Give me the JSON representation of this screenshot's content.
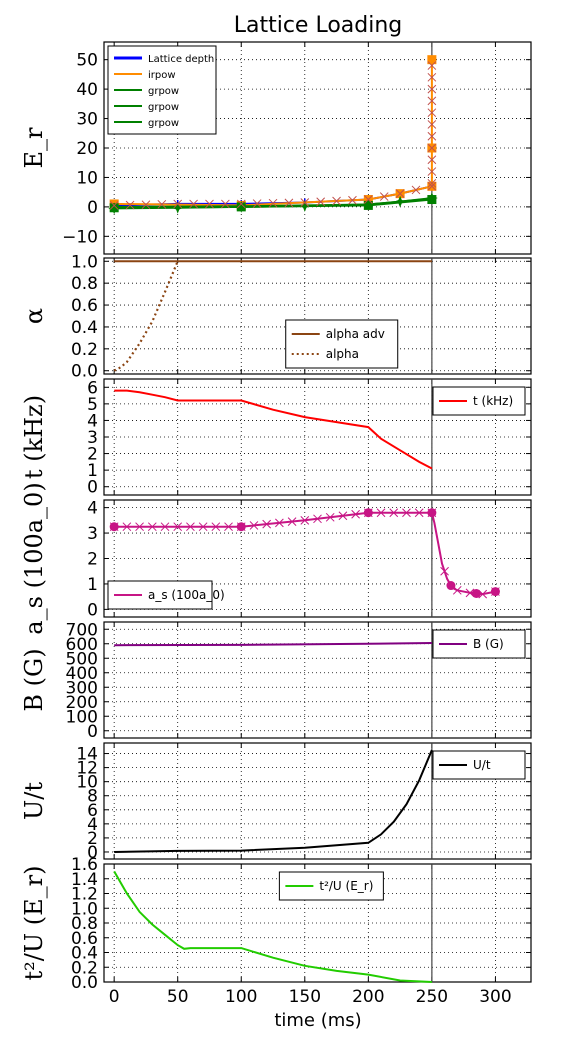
{
  "figure": {
    "title": "Lattice Loading",
    "xlabel": "time (ms)"
  },
  "chart_data": [
    {
      "type": "line",
      "ylabel": "E_r",
      "ylim": [
        -16,
        56
      ],
      "yticks": [
        -10,
        0,
        10,
        20,
        30,
        40,
        50
      ],
      "ytick_labels": [
        "−10",
        "0",
        "10",
        "20",
        "30",
        "40",
        "50"
      ],
      "legend_position": "upper-left",
      "series": [
        {
          "name": "Lattice depth",
          "color": "#0000ff",
          "style": "solid",
          "marker": "plus",
          "x": [
            0,
            50,
            100,
            150,
            200,
            225,
            250
          ],
          "y": [
            0.5,
            1.0,
            1.0,
            1.5,
            2.5,
            4.5,
            7.0
          ]
        },
        {
          "name": "irpow",
          "color": "#ff8c00",
          "style": "solid",
          "marker": "square",
          "x": [
            0,
            100,
            200,
            225,
            250,
            250,
            250
          ],
          "y": [
            1,
            0.5,
            2.5,
            4.5,
            7.0,
            20,
            50
          ]
        },
        {
          "name": "grpow",
          "color": "#007f00",
          "style": "solid",
          "marker": "star",
          "x": [
            0,
            50,
            100,
            150,
            200,
            225,
            250
          ],
          "y": [
            -0.5,
            -0.3,
            0,
            0.3,
            0.8,
            1.8,
            3.0
          ]
        },
        {
          "name": "grpow",
          "color": "#008000",
          "style": "solid",
          "marker": "square",
          "x": [
            0,
            100,
            200,
            250
          ],
          "y": [
            -0.3,
            0,
            0.5,
            2.5
          ]
        },
        {
          "name": "grpow",
          "color": "#008000",
          "style": "solid",
          "marker": "none",
          "x": [
            0,
            100,
            200,
            250
          ],
          "y": [
            0,
            0.2,
            0.8,
            2.8
          ]
        }
      ]
    },
    {
      "type": "line",
      "ylabel": "α",
      "ylim": [
        -0.03,
        1.03
      ],
      "yticks": [
        0.0,
        0.2,
        0.4,
        0.6,
        0.8,
        1.0
      ],
      "ytick_labels": [
        "0.0",
        "0.2",
        "0.4",
        "0.6",
        "0.8",
        "1.0"
      ],
      "legend_position": "lower-center",
      "series": [
        {
          "name": "alpha adv",
          "color": "#8b4513",
          "style": "solid",
          "x": [
            0,
            250
          ],
          "y": [
            1.0,
            1.0
          ]
        },
        {
          "name": "alpha",
          "color": "#8b4513",
          "style": "dotted",
          "x": [
            0,
            5,
            10,
            20,
            30,
            40,
            50
          ],
          "y": [
            0.0,
            0.03,
            0.08,
            0.25,
            0.45,
            0.72,
            1.0
          ]
        }
      ]
    },
    {
      "type": "line",
      "ylabel": "t (kHz)",
      "ylim": [
        -0.5,
        6.5
      ],
      "yticks": [
        0,
        1,
        2,
        3,
        4,
        5,
        6
      ],
      "ytick_labels": [
        "0",
        "1",
        "2",
        "3",
        "4",
        "5",
        "6"
      ],
      "legend_position": "upper-right",
      "series": [
        {
          "name": "t (kHz)",
          "color": "#ff0000",
          "style": "solid",
          "x": [
            0,
            10,
            20,
            30,
            40,
            50,
            60,
            70,
            80,
            90,
            100,
            125,
            150,
            175,
            200,
            210,
            225,
            240,
            250
          ],
          "y": [
            5.8,
            5.8,
            5.7,
            5.55,
            5.4,
            5.2,
            5.2,
            5.2,
            5.2,
            5.2,
            5.2,
            4.65,
            4.2,
            3.9,
            3.6,
            2.9,
            2.2,
            1.5,
            1.1
          ]
        }
      ]
    },
    {
      "type": "line",
      "ylabel": "a_s (100a_0)",
      "ylim": [
        -0.3,
        4.3
      ],
      "yticks": [
        0,
        1,
        2,
        3,
        4
      ],
      "ytick_labels": [
        "0",
        "1",
        "2",
        "3",
        "4"
      ],
      "legend_position": "lower-left",
      "series": [
        {
          "name": "a_s (100a_0)",
          "color": "#c71585",
          "style": "solid",
          "x": [
            0,
            100,
            150,
            200,
            250,
            252,
            255,
            258,
            262,
            266,
            270,
            280,
            290,
            300
          ],
          "y": [
            3.25,
            3.25,
            3.5,
            3.8,
            3.8,
            3.4,
            2.6,
            1.8,
            1.2,
            0.85,
            0.75,
            0.65,
            0.6,
            0.7
          ]
        }
      ]
    },
    {
      "type": "line",
      "ylabel": "B (G)",
      "ylim": [
        -50,
        750
      ],
      "yticks": [
        0,
        100,
        200,
        300,
        400,
        500,
        600,
        700
      ],
      "ytick_labels": [
        "0",
        "100",
        "200",
        "300",
        "400",
        "500",
        "600",
        "700"
      ],
      "legend_position": "upper-right",
      "series": [
        {
          "name": "B (G)",
          "color": "#800080",
          "style": "solid",
          "x": [
            0,
            100,
            200,
            250
          ],
          "y": [
            590,
            592,
            600,
            605
          ]
        }
      ]
    },
    {
      "type": "line",
      "ylabel": "U/t",
      "ylim": [
        -1,
        15.5
      ],
      "yticks": [
        0,
        2,
        4,
        6,
        8,
        10,
        12,
        14
      ],
      "ytick_labels": [
        "0",
        "2",
        "4",
        "6",
        "8",
        "10",
        "12",
        "14"
      ],
      "legend_position": "upper-right",
      "series": [
        {
          "name": "U/t",
          "color": "#000000",
          "style": "solid",
          "x": [
            0,
            50,
            100,
            150,
            200,
            210,
            220,
            230,
            240,
            250
          ],
          "y": [
            0,
            0.15,
            0.2,
            0.6,
            1.3,
            2.5,
            4.3,
            6.8,
            10.2,
            14.5
          ]
        }
      ]
    },
    {
      "type": "line",
      "ylabel": "t²/U (E_r)",
      "ylim": [
        0.0,
        1.6
      ],
      "yticks": [
        0.0,
        0.2,
        0.4,
        0.6,
        0.8,
        1.0,
        1.2,
        1.4,
        1.6
      ],
      "ytick_labels": [
        "0.0",
        "0.2",
        "0.4",
        "0.6",
        "0.8",
        "1.0",
        "1.2",
        "1.4",
        "1.6"
      ],
      "legend_position": "upper-center",
      "series": [
        {
          "name": "t²/U (E_r)",
          "color": "#22cc00",
          "style": "solid",
          "x": [
            0,
            5,
            10,
            20,
            30,
            40,
            50,
            55,
            60,
            80,
            100,
            125,
            150,
            175,
            200,
            225,
            250
          ],
          "y": [
            1.5,
            1.35,
            1.2,
            0.95,
            0.78,
            0.64,
            0.5,
            0.45,
            0.46,
            0.46,
            0.46,
            0.33,
            0.22,
            0.15,
            0.1,
            0.02,
            0.0
          ]
        }
      ]
    }
  ],
  "xaxis": {
    "xlim": [
      -8,
      328
    ],
    "xticks": [
      0,
      50,
      100,
      150,
      200,
      250,
      300
    ],
    "xtick_labels": [
      "0",
      "50",
      "100",
      "150",
      "200",
      "250",
      "300"
    ],
    "vline_x": 250,
    "grid": true
  }
}
